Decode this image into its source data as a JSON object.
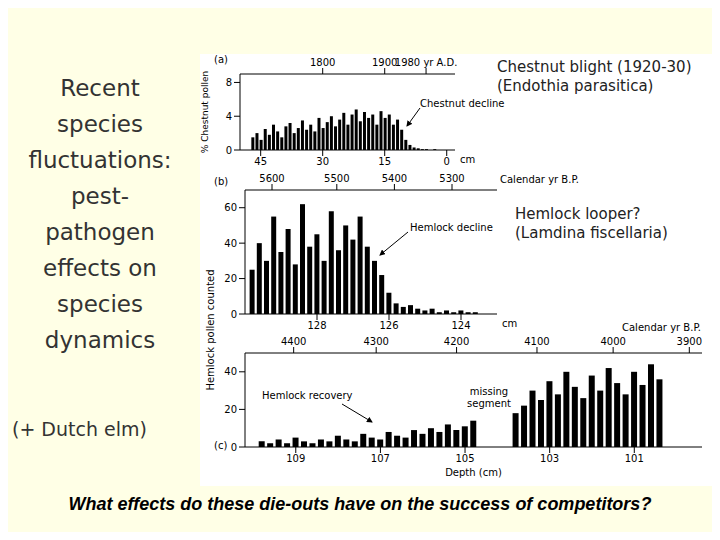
{
  "title_lines": [
    "Recent",
    "species",
    "fluctuations:",
    "pest-",
    "pathogen",
    "effects on",
    "species",
    "dynamics"
  ],
  "note": "(+ Dutch elm)",
  "question": "What effects do these die-outs have on the success of competitors?",
  "y_label_shared": "Hemlock pollen counted",
  "chart_data": [
    {
      "type": "bar",
      "panel": "(a)",
      "y_label": "% Chestnut pollen",
      "x_label": "cm",
      "color": "#000000",
      "x": [
        47,
        46,
        45,
        44,
        43,
        42,
        41,
        40,
        39,
        38,
        37,
        36,
        35,
        34,
        33,
        32,
        31,
        30,
        29,
        28,
        27,
        26,
        25,
        24,
        23,
        22,
        21,
        20,
        19,
        18,
        17,
        16,
        15,
        14,
        13,
        12,
        11,
        10,
        9,
        8,
        7,
        6,
        5,
        4,
        3,
        2
      ],
      "values": [
        1.5,
        2,
        1.2,
        2.5,
        1.8,
        3,
        2.2,
        1.5,
        2.8,
        3.2,
        2,
        2.6,
        3.5,
        2.4,
        3,
        2.2,
        3.8,
        2.6,
        3.3,
        4,
        2.8,
        3.6,
        4.4,
        3,
        4.2,
        4.8,
        3.4,
        4.5,
        3.8,
        4.2,
        3,
        4.6,
        3.8,
        4.2,
        3,
        3.6,
        2.4,
        1.2,
        0.6,
        0.3,
        0.2,
        0.1,
        0.1,
        0,
        0.1,
        0
      ],
      "xlim": [
        50,
        -2
      ],
      "xticks": [
        45,
        30,
        15,
        0
      ],
      "x2ticks": [
        {
          "value": 30,
          "label": "1800"
        },
        {
          "value": 15,
          "label": "1900"
        },
        {
          "value": 5,
          "label": "1980 yr A.D."
        }
      ],
      "ylim": [
        0,
        9
      ],
      "yticks": [
        0,
        4,
        8
      ],
      "annotations": [
        "Chestnut decline"
      ],
      "side_note": [
        "Chestnut blight (1920-30)",
        "(Endothia parasitica)"
      ]
    },
    {
      "type": "bar",
      "panel": "(b)",
      "x_label": "cm",
      "x2_label": "Calendar yr B.P.",
      "color": "#000000",
      "x": [
        129.8,
        129.6,
        129.4,
        129.2,
        129,
        128.8,
        128.6,
        128.4,
        128.2,
        128,
        127.8,
        127.6,
        127.4,
        127.2,
        127,
        126.8,
        126.6,
        126.4,
        126.2,
        126,
        125.8,
        125.6,
        125.4,
        125.2,
        125,
        124.8,
        124.6,
        124.4,
        124.2,
        124,
        123.8,
        123.6
      ],
      "values": [
        25,
        40,
        30,
        55,
        35,
        48,
        28,
        62,
        38,
        45,
        30,
        58,
        36,
        50,
        42,
        55,
        38,
        30,
        22,
        12,
        6,
        4,
        5,
        3,
        2,
        3,
        1,
        2,
        1,
        2,
        1,
        1
      ],
      "xlim": [
        130,
        123
      ],
      "xticks": [
        128,
        126,
        124
      ],
      "x2ticks": [
        {
          "value": 129.25,
          "label": "5600"
        },
        {
          "value": 127.45,
          "label": "5500"
        },
        {
          "value": 125.85,
          "label": "5400"
        },
        {
          "value": 124.25,
          "label": "5300"
        }
      ],
      "ylim": [
        0,
        70
      ],
      "yticks": [
        0,
        20,
        40,
        60
      ],
      "annotations": [
        "Hemlock decline"
      ],
      "side_note": [
        "Hemlock looper?",
        "(Lamdina fiscellaria)"
      ]
    },
    {
      "type": "bar",
      "panel": "(c)",
      "x_label": "Depth (cm)",
      "x2_label": "Calendar yr B.P.",
      "color": "#000000",
      "x": [
        109.8,
        109.6,
        109.4,
        109.2,
        109,
        108.8,
        108.6,
        108.4,
        108.2,
        108,
        107.8,
        107.6,
        107.4,
        107.2,
        107,
        106.8,
        106.6,
        106.4,
        106.2,
        106,
        105.8,
        105.6,
        105.4,
        105.2,
        105,
        104.8,
        104.6,
        104.4,
        104.2,
        104,
        103.8,
        103.6,
        103.4,
        103.2,
        103,
        102.8,
        102.6,
        102.4,
        102.2,
        102,
        101.8,
        101.6,
        101.4,
        101.2,
        101,
        100.8,
        100.6,
        100.4
      ],
      "values": [
        3,
        2,
        4,
        2,
        5,
        3,
        2,
        4,
        3,
        6,
        4,
        3,
        7,
        5,
        4,
        8,
        6,
        5,
        9,
        7,
        10,
        8,
        12,
        9,
        11,
        14,
        null,
        null,
        null,
        null,
        18,
        22,
        30,
        25,
        35,
        28,
        40,
        32,
        26,
        38,
        30,
        42,
        34,
        28,
        40,
        33,
        44,
        36
      ],
      "xlim": [
        110.2,
        99.4
      ],
      "xticks": [
        109,
        107,
        105,
        103,
        101
      ],
      "x2ticks": [
        {
          "value": 109.05,
          "label": "4400"
        },
        {
          "value": 107.1,
          "label": "4300"
        },
        {
          "value": 105.2,
          "label": "4200"
        },
        {
          "value": 103.3,
          "label": "4100"
        },
        {
          "value": 101.5,
          "label": "4000"
        },
        {
          "value": 99.7,
          "label": "3900"
        }
      ],
      "ylim": [
        0,
        50
      ],
      "yticks": [
        0,
        20,
        40
      ],
      "annotations": [
        "Hemlock recovery",
        "missing segment"
      ]
    }
  ]
}
